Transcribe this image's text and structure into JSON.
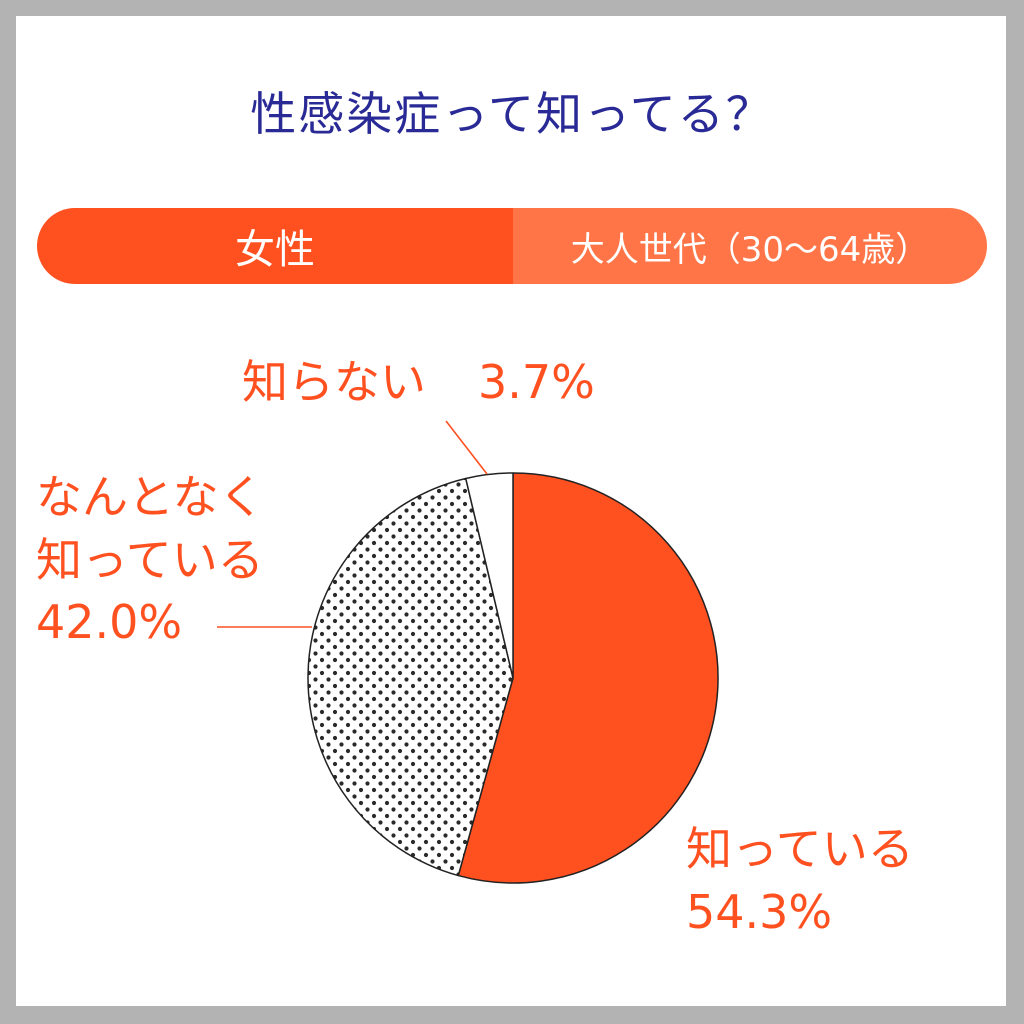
{
  "title": "性感染症って知ってる？",
  "segment": {
    "gender": "女性",
    "age_group": "大人世代（30〜64歳）"
  },
  "colors": {
    "title": "#2a2a96",
    "accent": "#ff5020",
    "accent_light": "#ff7547"
  },
  "labels": {
    "knows_name": "知っている",
    "knows_value": "54.3%",
    "vaguely_line1": "なんとなく",
    "vaguely_line2": "知っている",
    "vaguely_value": "42.0%",
    "unknown_name": "知らない",
    "unknown_value": "3.7%"
  },
  "chart_data": {
    "type": "pie",
    "title": "性感染症って知ってる？",
    "slices": [
      {
        "label": "知っている",
        "value": 54.3,
        "fill": "#ff5020"
      },
      {
        "label": "なんとなく知っている",
        "value": 42.0,
        "fill": "dots"
      },
      {
        "label": "知らない",
        "value": 3.7,
        "fill": "#ffffff"
      }
    ],
    "start": "12 o'clock",
    "direction": "clockwise"
  }
}
